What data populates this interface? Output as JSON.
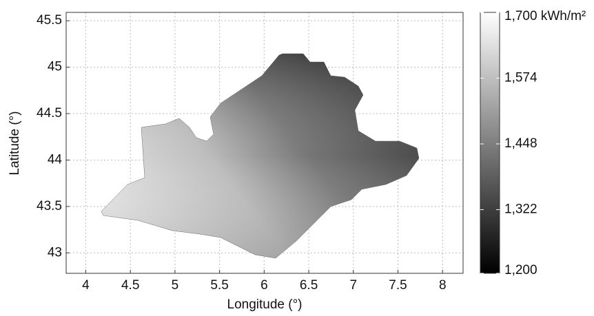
{
  "chart_data": {
    "type": "heatmap",
    "xlabel": "Longitude (°)",
    "ylabel": "Latitude (°)",
    "xlim": [
      3.78,
      8.23
    ],
    "ylim": [
      42.78,
      45.59
    ],
    "xticks": [
      4,
      4.5,
      5,
      5.5,
      6,
      6.5,
      7,
      7.5,
      8
    ],
    "yticks": [
      43,
      43.5,
      44,
      44.5,
      45,
      45.5
    ],
    "grid": true,
    "colorbar": {
      "lim": [
        1200,
        1700
      ],
      "ticks": [
        {
          "value": 1200,
          "label": "1,200"
        },
        {
          "value": 1322,
          "label": "1,322"
        },
        {
          "value": 1448,
          "label": "1,448"
        },
        {
          "value": 1574,
          "label": "1,574"
        },
        {
          "value": 1700,
          "label": "1,700 kWh/m²"
        }
      ],
      "colors": [
        "#000000",
        "#ffffff"
      ]
    }
  }
}
